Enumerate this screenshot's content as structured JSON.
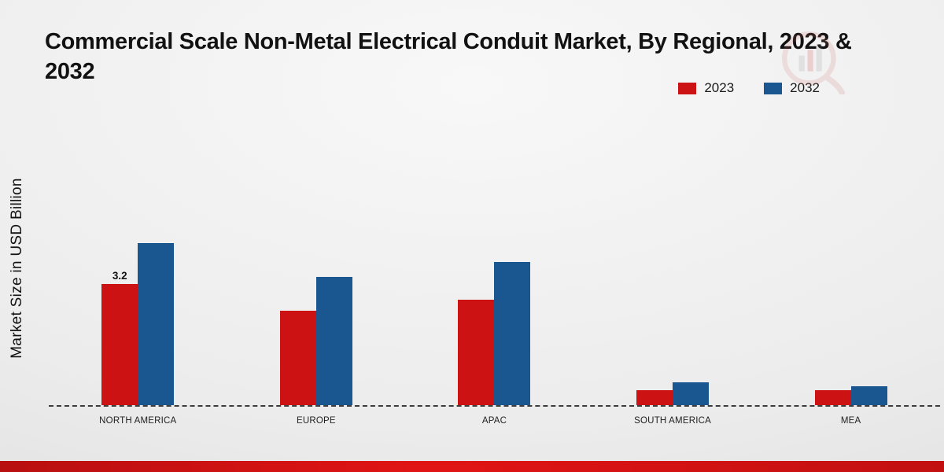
{
  "title": "Commercial Scale Non-Metal Electrical Conduit Market, By Regional, 2023 & 2032",
  "icons": {
    "watermark": "market-research-future-logo"
  },
  "footer": {
    "accent_bar_color": "#cf0d0d"
  },
  "chart_data": {
    "type": "bar",
    "title": "Commercial Scale Non-Metal Electrical Conduit Market, By Regional, 2023 & 2032",
    "ylabel": "Market Size in USD Billion",
    "xlabel": "",
    "categories": [
      "NORTH AMERICA",
      "EUROPE",
      "APAC",
      "SOUTH AMERICA",
      "MEA"
    ],
    "series": [
      {
        "name": "2023",
        "color": "#cc1212",
        "values": [
          3.2,
          2.5,
          2.8,
          0.4,
          0.4
        ]
      },
      {
        "name": "2032",
        "color": "#1a5791",
        "values": [
          4.3,
          3.4,
          3.8,
          0.6,
          0.5
        ]
      }
    ],
    "annotations": [
      {
        "series": "2023",
        "category": "NORTH AMERICA",
        "text": "3.2"
      }
    ],
    "ylim": [
      0,
      4.5
    ],
    "grid": false,
    "axis_style": "dashed-baseline-only",
    "legend_position": "top-right"
  }
}
